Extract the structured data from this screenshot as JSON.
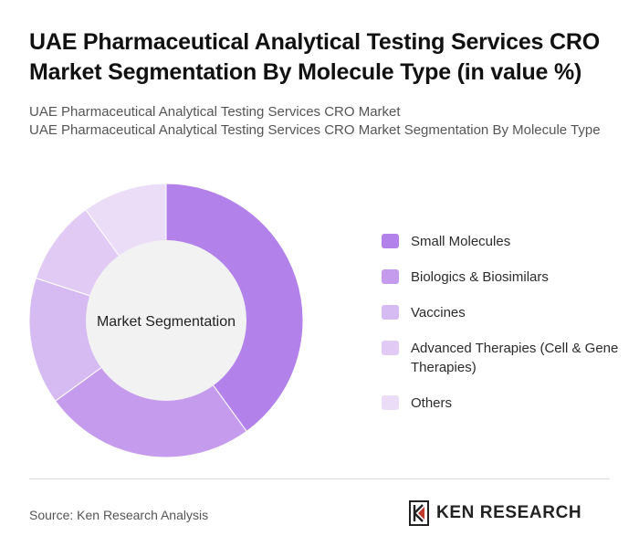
{
  "header": {
    "title": "UAE Pharmaceutical Analytical Testing Services CRO Market Segmentation By Molecule Type (in value %)",
    "subtitle_line1": "UAE Pharmaceutical Analytical Testing Services CRO Market",
    "subtitle_line2": "UAE Pharmaceutical Analytical Testing Services CRO Market Segmentation By Molecule Type"
  },
  "chart_data": {
    "type": "pie",
    "variant": "donut",
    "center_label": "Market Segmentation",
    "categories": [
      "Small Molecules",
      "Biologics & Biosimilars",
      "Vaccines",
      "Advanced Therapies (Cell & Gene Therapies)",
      "Others"
    ],
    "values": [
      40,
      25,
      15,
      10,
      10
    ],
    "colors": [
      "#b281ea",
      "#c59ced",
      "#d6baf2",
      "#e1cbf5",
      "#ebdcf8"
    ],
    "legend_position": "right"
  },
  "footer": {
    "source": "Source: Ken Research Analysis",
    "logo_text": "KEN RESEARCH"
  }
}
